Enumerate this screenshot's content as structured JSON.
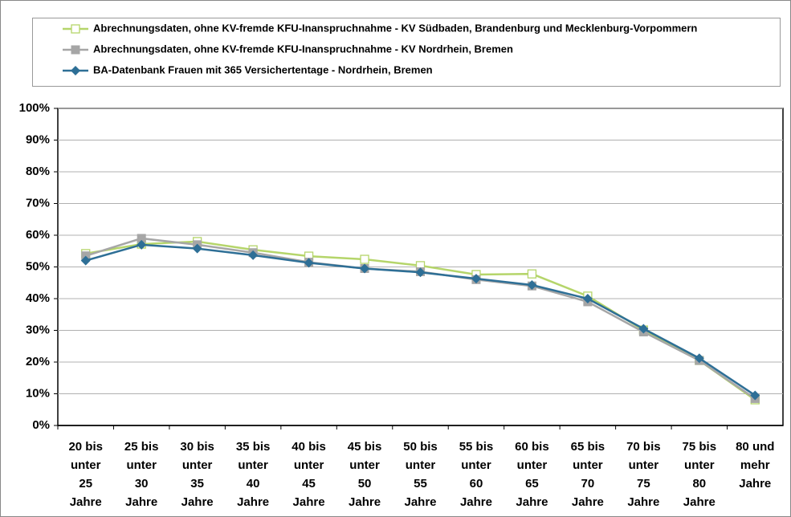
{
  "chart_data": {
    "type": "line",
    "categories": [
      "20 bis\nunter\n25\nJahre",
      "25 bis\nunter\n30\nJahre",
      "30 bis\nunter\n35\nJahre",
      "35 bis\nunter\n40\nJahre",
      "40 bis\nunter\n45\nJahre",
      "45 bis\nunter\n50\nJahre",
      "50 bis\nunter\n55\nJahre",
      "55 bis\nunter\n60\nJahre",
      "60 bis\nunter\n65\nJahre",
      "65 bis\nunter\n70\nJahre",
      "70 bis\nunter\n75\nJahre",
      "75 bis\nunter\n80\nJahre",
      "80 und\nmehr\nJahre"
    ],
    "series": [
      {
        "name": "Abrechnungsdaten, ohne KV-fremde KFU-Inanspruchnahme - KV Südbaden, Brandenburg und Mecklenburg-Vorpommern",
        "color": "#b5d56a",
        "marker": "hollow-square",
        "values": [
          54.2,
          57.2,
          58,
          55.4,
          53.4,
          52.4,
          50.4,
          47.6,
          47.8,
          40.8,
          30.1,
          20.5,
          8.1
        ]
      },
      {
        "name": "Abrechnungsdaten, ohne KV-fremde KFU-Inanspruchnahme - KV Nordrhein, Bremen",
        "color": "#a6a6a6",
        "marker": "square",
        "values": [
          53.5,
          59,
          57,
          54.5,
          51.5,
          49.5,
          48.5,
          46,
          44,
          39,
          29.5,
          20.5,
          8.5
        ]
      },
      {
        "name": "BA-Datenbank Frauen mit 365 Versichertentage - Nordrhein, Bremen",
        "color": "#2e6f96",
        "marker": "diamond",
        "values": [
          52,
          57,
          55.8,
          53.7,
          51.3,
          49.5,
          48.3,
          46.3,
          44.3,
          40,
          30.5,
          21.2,
          9.5
        ]
      }
    ],
    "ylim": [
      0,
      100
    ],
    "yticks": [
      {
        "value": 0,
        "label": "0%"
      },
      {
        "value": 10,
        "label": "10%"
      },
      {
        "value": 20,
        "label": "20%"
      },
      {
        "value": 30,
        "label": "30%"
      },
      {
        "value": 40,
        "label": "40%"
      },
      {
        "value": 50,
        "label": "50%"
      },
      {
        "value": 60,
        "label": "60%"
      },
      {
        "value": 70,
        "label": "70%"
      },
      {
        "value": 80,
        "label": "80%"
      },
      {
        "value": 90,
        "label": "90%"
      },
      {
        "value": 100,
        "label": "100%"
      }
    ],
    "grid": true
  }
}
